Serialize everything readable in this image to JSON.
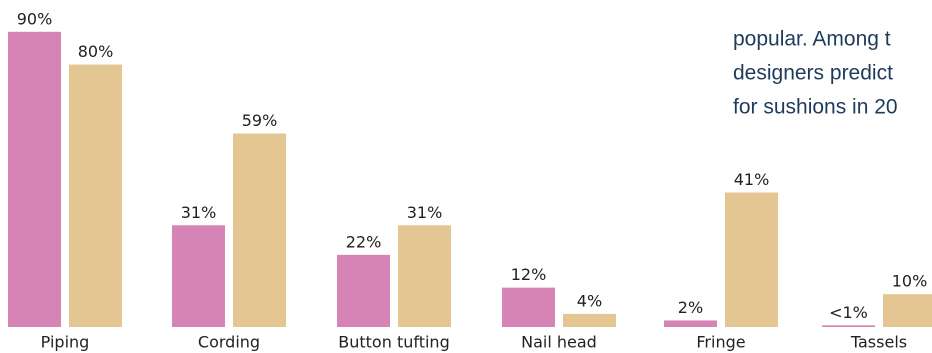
{
  "chart_data": {
    "type": "bar",
    "categories": [
      "Piping",
      "Cording",
      "Button tufting",
      "Nail head",
      "Fringe",
      "Tassels"
    ],
    "series": [
      {
        "color": "#d584b5",
        "values": [
          90,
          31,
          22,
          12,
          2,
          0.5
        ],
        "value_labels": [
          "90%",
          "31%",
          "22%",
          "12%",
          "2%",
          "<1%"
        ]
      },
      {
        "color": "#e4c692",
        "values": [
          80,
          59,
          31,
          4,
          41,
          10
        ],
        "value_labels": [
          "80%",
          "59%",
          "31%",
          "4%",
          "41%",
          "10%"
        ]
      }
    ]
  },
  "side_text": [
    "popular. Among t",
    "designers predict",
    "for sushions in 20"
  ]
}
